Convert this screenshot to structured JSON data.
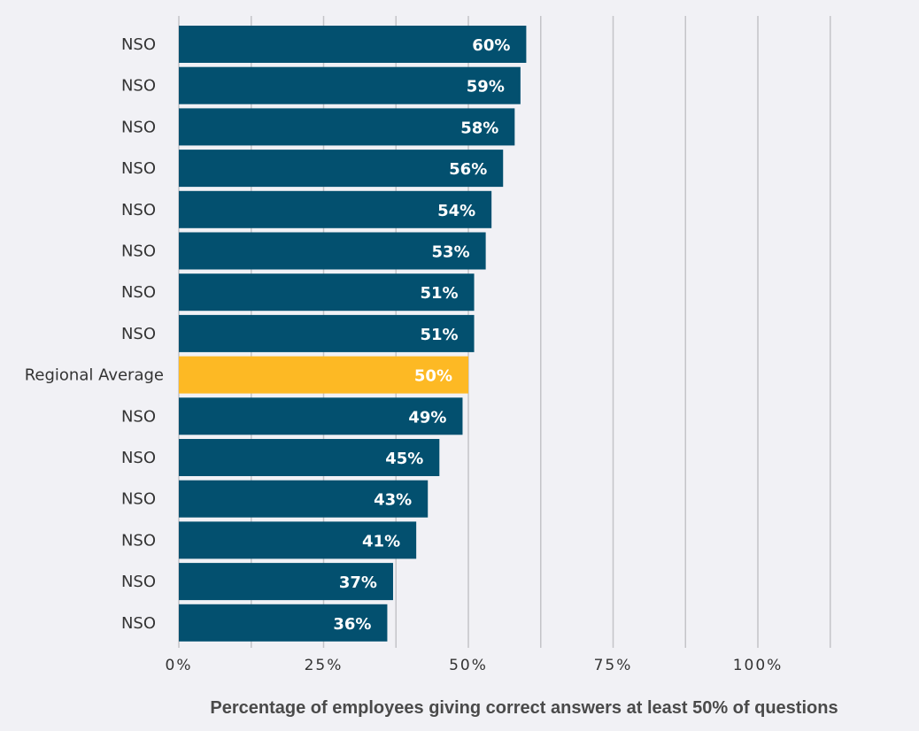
{
  "chart_data": {
    "type": "bar",
    "orientation": "horizontal",
    "categories": [
      "NSO",
      "NSO",
      "NSO",
      "NSO",
      "NSO",
      "NSO",
      "NSO",
      "NSO",
      "Regional Average",
      "NSO",
      "NSO",
      "NSO",
      "NSO",
      "NSO",
      "NSO"
    ],
    "values": [
      60,
      59,
      58,
      56,
      54,
      53,
      51,
      51,
      50,
      49,
      45,
      43,
      41,
      37,
      36
    ],
    "value_labels": [
      "60%",
      "59%",
      "58%",
      "56%",
      "54%",
      "53%",
      "51%",
      "51%",
      "50%",
      "49%",
      "45%",
      "43%",
      "41%",
      "37%",
      "36%"
    ],
    "highlight_category": "Regional Average",
    "xlim": [
      0,
      100
    ],
    "x_ticks": [
      0,
      25,
      50,
      75,
      100
    ],
    "x_tick_labels": [
      "0%",
      "25%",
      "50%",
      "75%",
      "100%"
    ],
    "title": "",
    "xlabel": "Percentage of employees giving correct answers at least 50% of questions",
    "ylabel": "",
    "grid": true,
    "legend": "none",
    "colors": {
      "bar": "#03506f",
      "highlight": "#fdb924",
      "grid": "#c4c4c8",
      "background": "#f1f1f5"
    }
  }
}
